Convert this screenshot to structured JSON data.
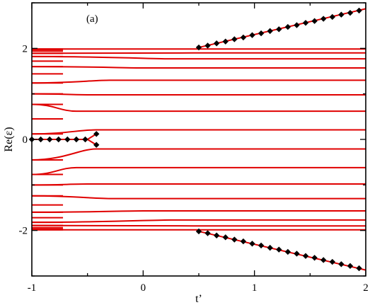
{
  "chart_data": {
    "type": "line",
    "panel_label": "(a)",
    "xlabel": "t’",
    "ylabel": "Re(ε)",
    "xlim": [
      -1,
      2
    ],
    "ylim": [
      -3,
      3
    ],
    "xticks": [
      "-1",
      "0",
      "1",
      "2"
    ],
    "yticks": [
      "-2",
      "0",
      "2"
    ],
    "grid": false,
    "line_color": "#e00000",
    "marker_color": "#000000",
    "flat_levels": [
      1.985,
      1.9,
      1.77,
      1.57,
      1.3,
      0.98,
      0.62,
      0.21,
      -0.21,
      -0.62,
      -0.98,
      -1.3,
      -1.57,
      -1.77,
      -1.9,
      -1.985
    ],
    "split_points": [
      0.5,
      0.45,
      0.25,
      0.0,
      -0.3,
      -0.5,
      -0.6,
      -0.42,
      -0.42,
      -0.6,
      -0.5,
      -0.3,
      0.0,
      0.25,
      0.45,
      0.5
    ],
    "left_levels_pos": [
      1.985,
      1.97,
      1.94,
      1.89,
      1.82,
      1.72,
      1.6,
      1.44,
      1.24,
      1.0,
      0.77,
      0.45,
      0.12
    ],
    "left_levels_neg": [
      -1.985,
      -1.97,
      -1.94,
      -1.89,
      -1.82,
      -1.72,
      -1.6,
      -1.44,
      -1.24,
      -1.0,
      -0.77,
      -0.45
    ],
    "outer_branches": [
      {
        "x": [
          0.5,
          2.0
        ],
        "y": [
          2.02,
          2.87
        ]
      },
      {
        "x": [
          0.5,
          2.0
        ],
        "y": [
          -2.02,
          -2.87
        ]
      }
    ],
    "markers_center": {
      "x": [
        -1.0,
        -0.92,
        -0.84,
        -0.76,
        -0.68,
        -0.6,
        -0.52,
        -0.42,
        -0.42
      ],
      "y": [
        0.0,
        0.0,
        0.0,
        0.0,
        0.0,
        0.0,
        0.0,
        0.12,
        -0.12
      ]
    },
    "markers_upper": {
      "x": [
        0.5,
        0.58,
        0.66,
        0.74,
        0.82,
        0.9,
        0.98,
        1.06,
        1.14,
        1.22,
        1.3,
        1.38,
        1.46,
        1.54,
        1.62,
        1.7,
        1.78,
        1.86,
        1.94
      ],
      "y": [
        2.02,
        2.06,
        2.11,
        2.15,
        2.2,
        2.24,
        2.29,
        2.33,
        2.38,
        2.42,
        2.47,
        2.51,
        2.56,
        2.6,
        2.65,
        2.69,
        2.74,
        2.78,
        2.83
      ]
    },
    "markers_lower": {
      "x": [
        0.5,
        0.58,
        0.66,
        0.74,
        0.82,
        0.9,
        0.98,
        1.06,
        1.14,
        1.22,
        1.3,
        1.38,
        1.46,
        1.54,
        1.62,
        1.7,
        1.78,
        1.86,
        1.94
      ],
      "y": [
        -2.02,
        -2.06,
        -2.11,
        -2.15,
        -2.2,
        -2.24,
        -2.29,
        -2.33,
        -2.38,
        -2.42,
        -2.47,
        -2.51,
        -2.56,
        -2.6,
        -2.65,
        -2.69,
        -2.74,
        -2.78,
        -2.83
      ]
    }
  }
}
